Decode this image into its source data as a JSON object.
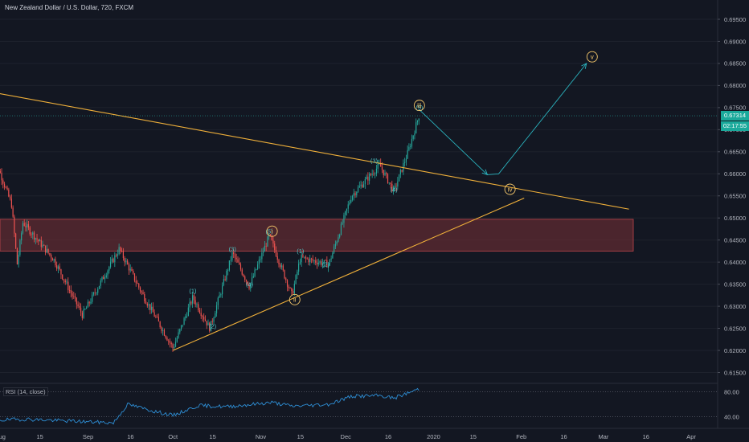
{
  "header": {
    "title": "New Zealand Dollar / U.S. Dollar, 720, FXCM"
  },
  "rsi": {
    "label": "RSI (14, close)",
    "ticks": [
      "80.00",
      "40.00"
    ]
  },
  "price_axis": {
    "ticks": [
      "0.69500",
      "0.69000",
      "0.68500",
      "0.68000",
      "0.67500",
      "0.67000",
      "0.66500",
      "0.66000",
      "0.65500",
      "0.65000",
      "0.64500",
      "0.64000",
      "0.63500",
      "0.63000",
      "0.62500",
      "0.62000",
      "0.61500"
    ],
    "current_price": "0.67314",
    "countdown": "02:17:55"
  },
  "time_axis": {
    "ticks": [
      "Aug",
      "15",
      "Sep",
      "16",
      "Oct",
      "15",
      "Nov",
      "15",
      "Dec",
      "16",
      "2020",
      "15",
      "Feb",
      "16",
      "Mar",
      "16",
      "Apr"
    ]
  },
  "wave_labels": {
    "minor": [
      "(1)",
      "(2)",
      "(3)",
      "(4)",
      "(5)",
      "(1)",
      "(2)",
      "(3)",
      "(4)",
      "(5)"
    ],
    "major": [
      "i",
      "ii",
      "iii",
      "iv",
      "v"
    ]
  },
  "colors": {
    "background": "#131722",
    "up_candle": "#26a69a",
    "down_candle": "#ef5350",
    "trendline": "#f0b03a",
    "zone": "#7a3236",
    "projection": "#2bb5c0",
    "rsi_line": "#2e8fd6",
    "price_badge": "#1aa99b"
  },
  "chart_data": {
    "type": "candlestick",
    "symbol": "New Zealand Dollar / U.S. Dollar",
    "timeframe": "720",
    "source": "FXCM",
    "ylim": [
      0.614,
      0.698
    ],
    "y_ticks": [
      0.695,
      0.69,
      0.685,
      0.68,
      0.675,
      0.67,
      0.665,
      0.66,
      0.655,
      0.65,
      0.645,
      0.64,
      0.635,
      0.63,
      0.625,
      0.62,
      0.615
    ],
    "last_price": 0.67314,
    "price_path": [
      {
        "x": "Jul 29",
        "y": 0.6655
      },
      {
        "x": "Aug 5",
        "y": 0.653
      },
      {
        "x": "Aug 7",
        "y": 0.6395
      },
      {
        "x": "Aug 9",
        "y": 0.649
      },
      {
        "x": "Aug 20",
        "y": 0.6405
      },
      {
        "x": "Aug 30",
        "y": 0.628
      },
      {
        "x": "Sep 12",
        "y": 0.643
      },
      {
        "x": "Sep 20",
        "y": 0.633
      },
      {
        "x": "Oct 1",
        "y": 0.6205
      },
      {
        "x": "Oct 8",
        "y": 0.632
      },
      {
        "x": "Oct 14",
        "y": 0.625
      },
      {
        "x": "Oct 22",
        "y": 0.642
      },
      {
        "x": "Oct 28",
        "y": 0.6345
      },
      {
        "x": "Nov 4",
        "y": 0.646
      },
      {
        "x": "Nov 12",
        "y": 0.6325
      },
      {
        "x": "Nov 15",
        "y": 0.641
      },
      {
        "x": "Nov 25",
        "y": 0.6395
      },
      {
        "x": "Dec 3",
        "y": 0.655
      },
      {
        "x": "Dec 13",
        "y": 0.662
      },
      {
        "x": "Dec 18",
        "y": 0.656
      },
      {
        "x": "Dec 23",
        "y": 0.665
      },
      {
        "x": "Dec 27",
        "y": 0.6735
      }
    ],
    "resistance_zone": [
      0.6425,
      0.6497
    ],
    "trendlines": [
      {
        "from": {
          "x": "Jul 29",
          "y": 0.6785
        },
        "to": {
          "x": "Mar 10",
          "y": 0.652
        }
      },
      {
        "from": {
          "x": "Oct 1",
          "y": 0.62
        },
        "to": {
          "x": "Feb 2",
          "y": 0.6545
        }
      }
    ],
    "projection": [
      {
        "x": "Dec 27",
        "y": 0.6745
      },
      {
        "x": "Jan 20",
        "y": 0.6598
      },
      {
        "x": "Jan 24",
        "y": 0.66
      },
      {
        "x": "Feb 24",
        "y": 0.685
      }
    ],
    "annotations": [
      {
        "text": "(1)",
        "x": "Oct 8",
        "y": 0.633
      },
      {
        "text": "(2)",
        "x": "Oct 15",
        "y": 0.625
      },
      {
        "text": "(3)",
        "x": "Oct 22",
        "y": 0.6425
      },
      {
        "text": "(4)",
        "x": "Oct 28",
        "y": 0.6345
      },
      {
        "text": "(5)",
        "x": "Nov 4",
        "y": 0.6465
      },
      {
        "text": "(1)",
        "x": "Nov 15",
        "y": 0.642
      },
      {
        "text": "(2)",
        "x": "Nov 24",
        "y": 0.639
      },
      {
        "text": "(3)",
        "x": "Dec 11",
        "y": 0.6625
      },
      {
        "text": "(4)",
        "x": "Dec 18",
        "y": 0.656
      },
      {
        "text": "(5)",
        "x": "Dec 27",
        "y": 0.6745
      },
      {
        "text": "i",
        "x": "Nov 5",
        "y": 0.647
      },
      {
        "text": "ii",
        "x": "Nov 13",
        "y": 0.6315
      },
      {
        "text": "iii",
        "x": "Dec 27",
        "y": 0.6755
      },
      {
        "text": "iv",
        "x": "Jan 28",
        "y": 0.6565
      },
      {
        "text": "v",
        "x": "Feb 26",
        "y": 0.6865
      }
    ],
    "rsi": {
      "name": "RSI (14, close)",
      "levels": [
        80,
        40
      ],
      "ylim": [
        25,
        90
      ],
      "path": [
        {
          "x": "Jul 29",
          "y": 34
        },
        {
          "x": "Aug 10",
          "y": 36
        },
        {
          "x": "Aug 25",
          "y": 33
        },
        {
          "x": "Sep 10",
          "y": 30
        },
        {
          "x": "Sep 15",
          "y": 60
        },
        {
          "x": "Sep 25",
          "y": 48
        },
        {
          "x": "Oct 1",
          "y": 42
        },
        {
          "x": "Oct 10",
          "y": 58
        },
        {
          "x": "Oct 20",
          "y": 56
        },
        {
          "x": "Nov 5",
          "y": 63
        },
        {
          "x": "Nov 12",
          "y": 57
        },
        {
          "x": "Nov 25",
          "y": 60
        },
        {
          "x": "Dec 3",
          "y": 73
        },
        {
          "x": "Dec 13",
          "y": 74
        },
        {
          "x": "Dec 18",
          "y": 70
        },
        {
          "x": "Dec 27",
          "y": 85
        }
      ]
    }
  }
}
